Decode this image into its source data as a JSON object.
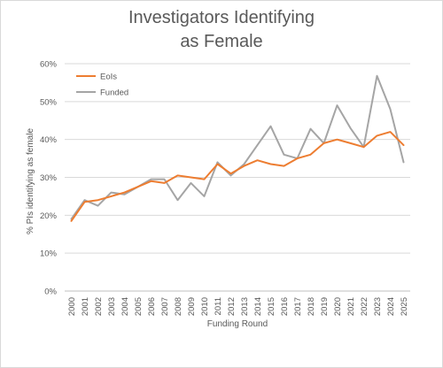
{
  "chart_data": {
    "type": "line",
    "title_line1": "Investigators Identifying",
    "title_line2": "as Female",
    "xlabel": "Funding Round",
    "ylabel": "% PIs identifying as female",
    "ylim": [
      0,
      60
    ],
    "yticks": [
      0,
      10,
      20,
      30,
      40,
      50,
      60
    ],
    "ytick_labels": [
      "0%",
      "10%",
      "20%",
      "30%",
      "40%",
      "50%",
      "60%"
    ],
    "grid": true,
    "legend_position": "top-left",
    "categories": [
      "2000",
      "2001",
      "2002",
      "2003",
      "2004",
      "2005",
      "2006",
      "2007",
      "2008",
      "2009",
      "2010",
      "2011",
      "2012",
      "2013",
      "2014",
      "2015",
      "2016",
      "2017",
      "2018",
      "2019",
      "2020",
      "2021",
      "2022",
      "2023",
      "2024",
      "2025"
    ],
    "series": [
      {
        "name": "EoIs",
        "color": "#ED7D31",
        "values": [
          18.5,
          23.5,
          24.0,
          25.0,
          26.0,
          27.5,
          29.0,
          28.5,
          30.5,
          30.0,
          29.5,
          33.5,
          31.0,
          33.0,
          34.5,
          33.5,
          33.0,
          35.0,
          36.0,
          39.0,
          40.0,
          39.0,
          38.0,
          41.0,
          42.0,
          38.5
        ]
      },
      {
        "name": "Funded",
        "color": "#A5A5A5",
        "values": [
          19.0,
          24.0,
          22.5,
          26.0,
          25.5,
          27.5,
          29.5,
          29.5,
          24.0,
          28.5,
          25.0,
          34.0,
          30.5,
          33.5,
          38.5,
          43.5,
          36.0,
          35.0,
          42.8,
          39.0,
          49.0,
          43.0,
          38.0,
          56.8,
          48.0,
          34.0
        ]
      }
    ]
  }
}
